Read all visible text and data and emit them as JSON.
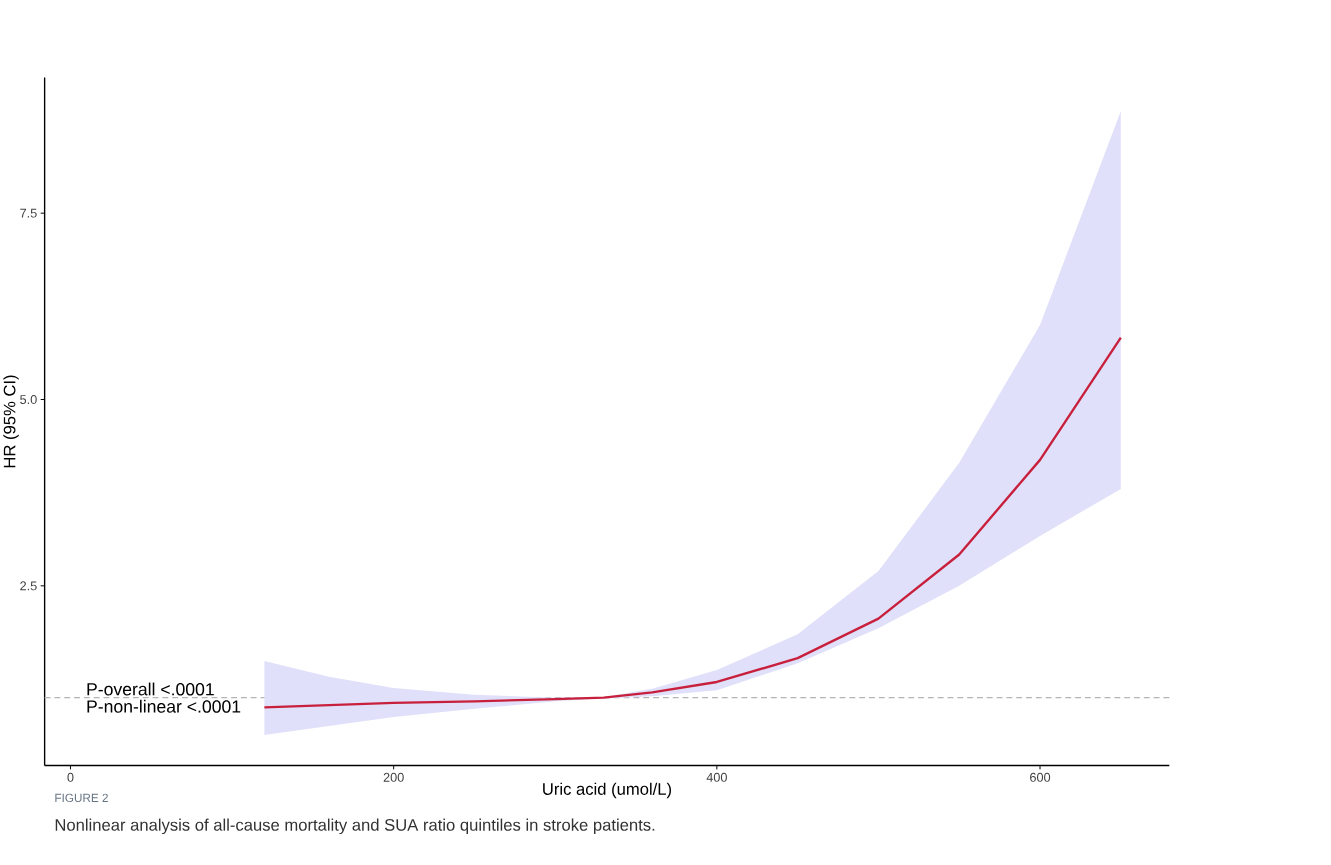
{
  "chart_data": {
    "type": "line",
    "xlabel": "Uric acid (umol/L)",
    "ylabel": "HR (95% CI)",
    "annotations": [
      "P-overall <.0001",
      "P-non-linear <.0001",
      "FIGURE 2",
      "Nonlinear analysis of all-cause mortality and SUA ratio quintiles in stroke patients."
    ],
    "xlim": [
      -16,
      680
    ],
    "ylim": [
      0.09,
      9.32
    ],
    "xticks": [
      0,
      200,
      400,
      600
    ],
    "yticks": [
      2.5,
      {
        "value": 5,
        "label": "5.0"
      },
      7.5
    ],
    "series": [
      {
        "color": "#c8203c",
        "x": [
          120,
          160,
          200,
          250,
          300,
          330,
          360,
          400,
          450,
          500,
          550,
          600,
          650
        ],
        "values": [
          0.87,
          0.9,
          0.93,
          0.95,
          0.98,
          1.0,
          1.07,
          1.21,
          1.53,
          2.06,
          2.92,
          4.19,
          5.83
        ],
        "lower": [
          0.5,
          0.62,
          0.74,
          0.85,
          0.95,
          0.99,
          1.02,
          1.1,
          1.46,
          1.93,
          2.5,
          3.17,
          3.8
        ],
        "upper": [
          1.49,
          1.28,
          1.13,
          1.04,
          1.0,
          1.01,
          1.12,
          1.37,
          1.85,
          2.7,
          4.15,
          6.0,
          8.87
        ]
      }
    ],
    "ref_lines": [
      {
        "axis": "y",
        "value": 1,
        "color": "#b4b4b4",
        "line_style": "dashed"
      }
    ]
  }
}
